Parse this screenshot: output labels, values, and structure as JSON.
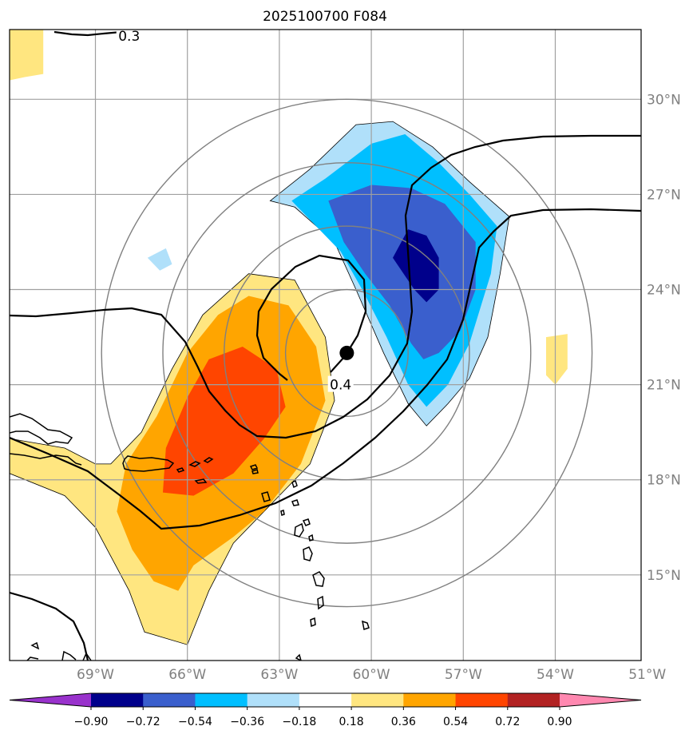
{
  "chart_data": {
    "type": "heatmap",
    "title": "2025100700 F084",
    "map_extent": {
      "lon": [
        -71.8,
        -51.2
      ],
      "lat": [
        12.3,
        32.2
      ]
    },
    "x_ticks": [
      {
        "value": -69,
        "label": "69°W"
      },
      {
        "value": -66,
        "label": "66°W"
      },
      {
        "value": -63,
        "label": "63°W"
      },
      {
        "value": -60,
        "label": "60°W"
      },
      {
        "value": -57,
        "label": "57°W"
      },
      {
        "value": -54,
        "label": "54°W"
      },
      {
        "value": -51,
        "label": "51°W"
      }
    ],
    "y_ticks": [
      {
        "value": 15,
        "label": "15°N"
      },
      {
        "value": 18,
        "label": "18°N"
      },
      {
        "value": 21,
        "label": "21°N"
      },
      {
        "value": 24,
        "label": "24°N"
      },
      {
        "value": 27,
        "label": "27°N"
      },
      {
        "value": 30,
        "label": "30°N"
      }
    ],
    "center_marker": {
      "lon": -60.8,
      "lat": 22.0
    },
    "range_rings_deg": [
      2,
      4,
      6,
      8
    ],
    "contour_labels": [
      {
        "text": "0.3",
        "lon": -67.9,
        "lat": 32.0
      },
      {
        "text": "0.4",
        "lon": -61.0,
        "lat": 21.0
      }
    ],
    "colorbar": {
      "boundaries": [
        "−0.90",
        "−0.72",
        "−0.54",
        "−0.36",
        "−0.18",
        "0.18",
        "0.36",
        "0.54",
        "0.72",
        "0.90"
      ],
      "colors": [
        "#9932cc",
        "#00008b",
        "#3a5fcd",
        "#00bfff",
        "#b0e0fa",
        "#ffffff",
        "#ffe680",
        "#ffa500",
        "#ff4500",
        "#b22222",
        "#ff88b0"
      ]
    },
    "filled_regions": [
      {
        "level": "0.18",
        "color": "#ffe680",
        "lonlat": [
          [
            -68.5,
            18.5
          ],
          [
            -67.5,
            19.5
          ],
          [
            -66.5,
            21.5
          ],
          [
            -65.5,
            23.2
          ],
          [
            -64,
            24.5
          ],
          [
            -62.5,
            24.3
          ],
          [
            -61.5,
            22.5
          ],
          [
            -61.2,
            20.5
          ],
          [
            -62,
            18.5
          ],
          [
            -63.2,
            17.3
          ],
          [
            -64.5,
            16
          ],
          [
            -65.3,
            14.5
          ],
          [
            -66,
            12.8
          ],
          [
            -67.4,
            13.2
          ],
          [
            -67.9,
            14.5
          ],
          [
            -69,
            16.5
          ],
          [
            -70,
            17.5
          ],
          [
            -71.8,
            18.2
          ],
          [
            -71.8,
            19.3
          ],
          [
            -70,
            19
          ],
          [
            -69,
            18.5
          ]
        ]
      },
      {
        "level": "0.18",
        "color": "#ffe680",
        "lonlat": [
          [
            -71.8,
            32.2
          ],
          [
            -70.7,
            32.2
          ],
          [
            -70.7,
            30.8
          ],
          [
            -71.3,
            30.7
          ],
          [
            -71.8,
            30.6
          ]
        ]
      },
      {
        "level": "0.18",
        "color": "#ffe680",
        "lonlat": [
          [
            -54.3,
            22.5
          ],
          [
            -53.6,
            22.6
          ],
          [
            -53.6,
            21.5
          ],
          [
            -54.0,
            21.0
          ],
          [
            -54.3,
            21.3
          ]
        ]
      },
      {
        "level": "0.36",
        "color": "#ffa500",
        "lonlat": [
          [
            -68,
            18.5
          ],
          [
            -67,
            20
          ],
          [
            -66,
            22
          ],
          [
            -65,
            23.2
          ],
          [
            -64,
            23.8
          ],
          [
            -62.7,
            23.5
          ],
          [
            -61.8,
            22.2
          ],
          [
            -61.5,
            20.5
          ],
          [
            -62.3,
            18.5
          ],
          [
            -63.5,
            17
          ],
          [
            -64.5,
            16.2
          ],
          [
            -65.8,
            15.3
          ],
          [
            -66.3,
            14.5
          ],
          [
            -67.1,
            14.8
          ],
          [
            -67.8,
            15.8
          ],
          [
            -68.3,
            17
          ]
        ]
      },
      {
        "level": "0.54",
        "color": "#ff4500",
        "lonlat": [
          [
            -66.7,
            19
          ],
          [
            -66,
            20.6
          ],
          [
            -65.3,
            21.8
          ],
          [
            -64.2,
            22.2
          ],
          [
            -63.1,
            21.5
          ],
          [
            -62.8,
            20.3
          ],
          [
            -63.5,
            19.3
          ],
          [
            -64.5,
            18.2
          ],
          [
            -65.8,
            17.5
          ],
          [
            -66.8,
            17.6
          ]
        ]
      },
      {
        "level": "-0.18",
        "color": "#b0e0fa",
        "lonlat": [
          [
            -63.3,
            26.8
          ],
          [
            -62,
            27.8
          ],
          [
            -60.5,
            29.2
          ],
          [
            -59.3,
            29.3
          ],
          [
            -58,
            28.5
          ],
          [
            -56.8,
            27.4
          ],
          [
            -55.5,
            26.3
          ],
          [
            -55.8,
            24.5
          ],
          [
            -56.2,
            22.5
          ],
          [
            -56.8,
            21.2
          ],
          [
            -57.5,
            20.4
          ],
          [
            -58.2,
            19.7
          ],
          [
            -58.8,
            20.4
          ],
          [
            -59.6,
            22
          ],
          [
            -60.5,
            24
          ],
          [
            -61.2,
            25.5
          ],
          [
            -62.5,
            26.6
          ]
        ]
      },
      {
        "level": "-0.18",
        "color": "#b0e0fa",
        "lonlat": [
          [
            -67.3,
            25.0
          ],
          [
            -66.7,
            25.3
          ],
          [
            -66.5,
            24.8
          ],
          [
            -66.9,
            24.6
          ]
        ]
      },
      {
        "level": "-0.36",
        "color": "#00bfff",
        "lonlat": [
          [
            -62.6,
            26.8
          ],
          [
            -61.5,
            27.5
          ],
          [
            -60,
            28.6
          ],
          [
            -58.9,
            28.9
          ],
          [
            -57.8,
            28
          ],
          [
            -56.8,
            27
          ],
          [
            -55.9,
            26
          ],
          [
            -56.1,
            24.5
          ],
          [
            -56.8,
            22.3
          ],
          [
            -57.5,
            21
          ],
          [
            -58.2,
            20.3
          ],
          [
            -58.8,
            21
          ],
          [
            -59.5,
            22.5
          ],
          [
            -60.3,
            24
          ],
          [
            -61,
            25.2
          ],
          [
            -62,
            26.2
          ]
        ]
      },
      {
        "level": "-0.54",
        "color": "#3a5fcd",
        "lonlat": [
          [
            -61.4,
            26.8
          ],
          [
            -60,
            27.3
          ],
          [
            -58.7,
            27.2
          ],
          [
            -57.6,
            26.7
          ],
          [
            -56.6,
            25.5
          ],
          [
            -56.6,
            24
          ],
          [
            -57.1,
            22.7
          ],
          [
            -57.8,
            22
          ],
          [
            -58.3,
            21.8
          ],
          [
            -58.7,
            22.3
          ],
          [
            -59.4,
            23.5
          ],
          [
            -60.2,
            24.5
          ],
          [
            -60.9,
            25.5
          ]
        ]
      },
      {
        "level": "-0.72",
        "color": "#00008b",
        "lonlat": [
          [
            -59.3,
            25.0
          ],
          [
            -58.8,
            25.9
          ],
          [
            -58.2,
            25.7
          ],
          [
            -57.8,
            25.0
          ],
          [
            -57.8,
            24.0
          ],
          [
            -58.2,
            23.6
          ],
          [
            -58.6,
            24.0
          ]
        ]
      }
    ]
  }
}
